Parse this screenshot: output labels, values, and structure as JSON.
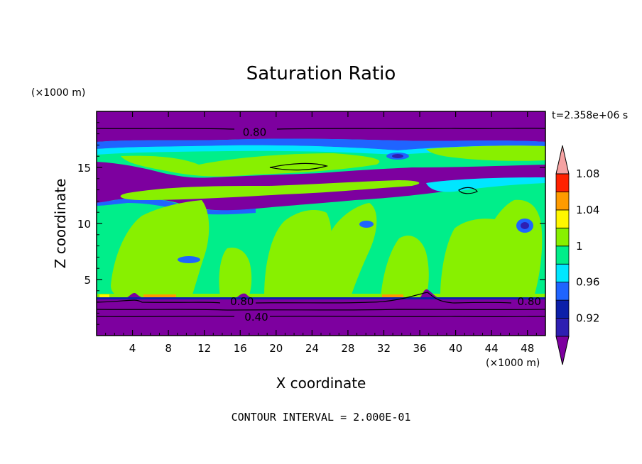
{
  "chart_data": {
    "type": "heatmap",
    "title": "Saturation Ratio",
    "xlabel": "X coordinate",
    "ylabel": "Z coordinate",
    "x_unit": "(×1000 m)",
    "y_unit": "(×1000 m)",
    "time_label": "t=2.358e+06 s",
    "footer": "CONTOUR INTERVAL = 2.000E-01",
    "xlim": [
      0,
      50
    ],
    "ylim": [
      0,
      20
    ],
    "x_ticks": [
      4,
      8,
      12,
      16,
      20,
      24,
      28,
      32,
      36,
      40,
      44,
      48
    ],
    "y_ticks": [
      5,
      10,
      15
    ],
    "colorbar": {
      "levels": [
        0.9,
        0.92,
        0.94,
        0.96,
        0.98,
        1.0,
        1.02,
        1.04,
        1.06,
        1.08,
        1.1
      ],
      "tick_labels": [
        "0.92",
        "0.96",
        "1",
        "1.04",
        "1.08"
      ],
      "colors": [
        "#7d009f",
        "#2e1fb2",
        "#0c1fa9",
        "#1f64ff",
        "#00e6ff",
        "#00ee8a",
        "#88f000",
        "#fff700",
        "#ff9b00",
        "#ff2200",
        "#f5a2a2"
      ],
      "extend": "both"
    },
    "contour_labels": [
      {
        "text": "0.80",
        "x": 17.6,
        "z": 18.2
      },
      {
        "text": "0.80",
        "x": 16.2,
        "z": 3.1
      },
      {
        "text": "0.80",
        "x": 48.2,
        "z": 3.1
      },
      {
        "text": "0.40",
        "x": 17.8,
        "z": 1.7
      }
    ],
    "bands": [
      {
        "from": 0.0,
        "to": 3.6,
        "level": "below 0.92"
      },
      {
        "from": 3.6,
        "to": 11.0,
        "level": "0.98-1.02"
      },
      {
        "from": 11.0,
        "to": 13.5,
        "level": "0.92-1.00 (mixed)"
      },
      {
        "from": 13.5,
        "to": 17.0,
        "level": "0.92-1.02 (mixed)"
      },
      {
        "from": 17.0,
        "to": 20.0,
        "level": "below 0.92"
      }
    ]
  }
}
